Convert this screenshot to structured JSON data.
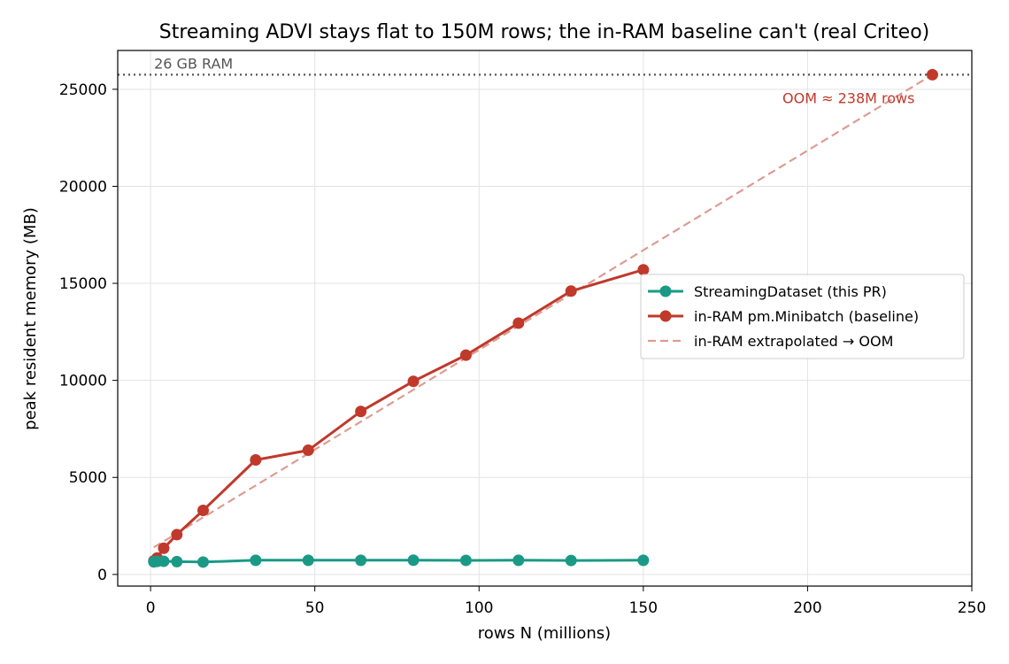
{
  "chart_data": {
    "type": "line",
    "title": "Streaming ADVI stays flat to 150M rows; the in-RAM baseline can't  (real Criteo)",
    "xlabel": "rows  N  (millions)",
    "ylabel": "peak resident memory (MB)",
    "xlim": [
      -10,
      250
    ],
    "ylim": [
      -600,
      27000
    ],
    "xticks": [
      0,
      50,
      100,
      150,
      200,
      250
    ],
    "yticks": [
      0,
      5000,
      10000,
      15000,
      20000,
      25000
    ],
    "grid": true,
    "legend_position": "center-right",
    "series": [
      {
        "name": "StreamingDataset (this PR)",
        "style": "solid-markers",
        "color": "#1a9a86",
        "x": [
          1,
          2,
          4,
          8,
          16,
          32,
          48,
          64,
          80,
          96,
          112,
          128,
          150
        ],
        "y": [
          650,
          670,
          680,
          660,
          640,
          730,
          730,
          730,
          735,
          725,
          730,
          720,
          730
        ]
      },
      {
        "name": "in-RAM pm.Minibatch (baseline)",
        "style": "solid-markers",
        "color": "#c0392b",
        "x": [
          1,
          2,
          4,
          8,
          16,
          32,
          48,
          64,
          80,
          96,
          112,
          128,
          150
        ],
        "y": [
          700,
          850,
          1350,
          2050,
          3300,
          5900,
          6400,
          8400,
          9950,
          11300,
          12950,
          14600,
          15700
        ]
      },
      {
        "name": "in-RAM extrapolated → OOM",
        "style": "dashed",
        "color": "#dd9c92",
        "x": [
          1,
          238
        ],
        "y": [
          1400,
          25750
        ]
      }
    ],
    "oom_point": {
      "x": 238,
      "y": 25750,
      "color": "#c0392b"
    },
    "ram_limit": {
      "y": 25750,
      "label": "26 GB RAM",
      "color": "#555555"
    },
    "annotations": [
      {
        "text": "OOM ≈ 238M rows",
        "x": 238,
        "y": 25750,
        "color": "#c0392b"
      }
    ]
  }
}
